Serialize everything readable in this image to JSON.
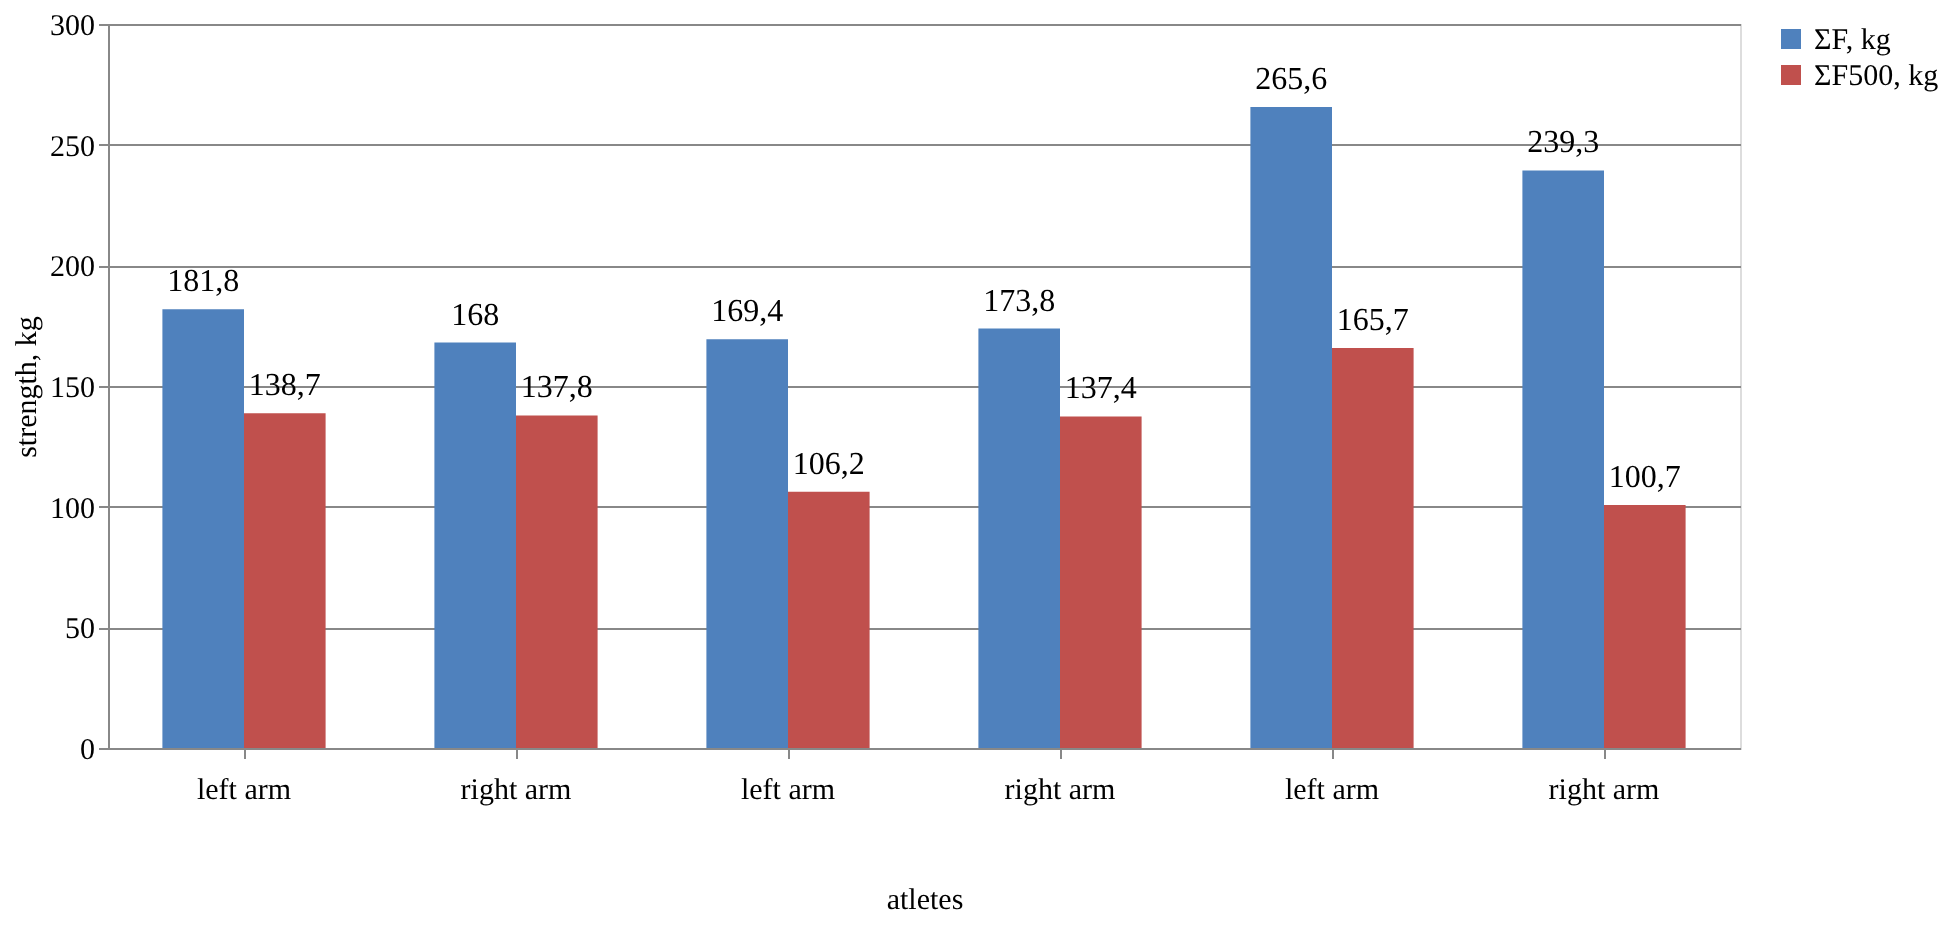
{
  "chart_data": {
    "type": "bar",
    "xlabel": "atletes",
    "ylabel": "strength, kg",
    "categories": [
      "left arm",
      "right arm",
      "left arm",
      "right arm",
      "left arm",
      "right arm"
    ],
    "series": [
      {
        "name": "ΣF, kg",
        "color": "#4f81bd",
        "values": [
          181.8,
          168,
          169.4,
          173.8,
          265.6,
          239.3
        ],
        "value_labels": [
          "181,8",
          "168",
          "169,4",
          "173,8",
          "265,6",
          "239,3"
        ]
      },
      {
        "name": "ΣF500, kg",
        "color": "#c0504d",
        "values": [
          138.7,
          137.8,
          106.2,
          137.4,
          165.7,
          100.7
        ],
        "value_labels": [
          "138,7",
          "137,8",
          "106,2",
          "137,4",
          "165,7",
          "100,7"
        ]
      }
    ],
    "ylim": [
      0,
      300
    ],
    "yticks": [
      0,
      50,
      100,
      150,
      200,
      250,
      300
    ],
    "grid": "y",
    "legend": "right"
  }
}
